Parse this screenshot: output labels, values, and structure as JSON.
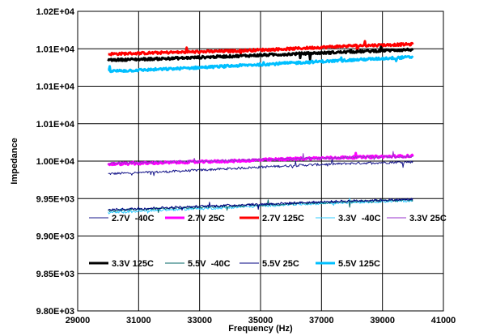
{
  "chart_data": {
    "type": "line",
    "title": "",
    "xlabel": "Frequency (Hz)",
    "ylabel": "Impedance",
    "xlim": [
      29000,
      41000
    ],
    "ylim": [
      9800,
      10200
    ],
    "x_ticks": [
      29000,
      31000,
      33000,
      35000,
      37000,
      39000,
      41000
    ],
    "x_tick_labels": [
      "29000",
      "31000",
      "33000",
      "35000",
      "37000",
      "39000",
      "41000"
    ],
    "y_ticks": [
      9800,
      9850,
      9900,
      9950,
      10000,
      10050,
      10100,
      10150,
      10200
    ],
    "y_tick_labels": [
      "9.80E+03",
      "9.85E+03",
      "9.90E+03",
      "9.95E+03",
      "1.00E+04",
      "1.01E+04",
      "1.01E+04",
      "1.01E+04",
      "1.02E+04"
    ],
    "grid": {
      "vertical": true,
      "horizontal": true
    },
    "legend_position": "bottom-inside",
    "x_range": [
      30000,
      40000
    ],
    "series": [
      {
        "name": "2.7V  -40C",
        "color": "#1a1a8c",
        "width": 1,
        "x": [
          30000,
          32000,
          34000,
          36000,
          38000,
          40000
        ],
        "values": [
          9983,
          9986,
          9990,
          9994,
          9997,
          9999
        ]
      },
      {
        "name": "2.7V 25C",
        "color": "#ff00ff",
        "width": 3,
        "x": [
          30000,
          32000,
          34000,
          36000,
          38000,
          40000
        ],
        "values": [
          9996,
          9998,
          10000,
          10003,
          10005,
          10007
        ]
      },
      {
        "name": "2.7V 125C",
        "color": "#ff0000",
        "width": 3,
        "x": [
          30000,
          32000,
          34000,
          36000,
          38000,
          40000
        ],
        "values": [
          10143,
          10145,
          10147,
          10150,
          10154,
          10156
        ]
      },
      {
        "name": "3.3V  -40C",
        "color": "#33ccff",
        "width": 1,
        "x": [
          30000,
          32000,
          34000,
          36000,
          38000,
          40000
        ],
        "values": [
          9931,
          9935,
          9938,
          9942,
          9945,
          9947
        ]
      },
      {
        "name": "3.3V 25C",
        "color": "#9933cc",
        "width": 1,
        "x": [
          30000,
          32000,
          34000,
          36000,
          38000,
          40000
        ],
        "values": [
          9997,
          9999,
          10001,
          10003,
          10005,
          10006
        ]
      },
      {
        "name": "3.3V 125C",
        "color": "#000000",
        "width": 3,
        "x": [
          30000,
          32000,
          34000,
          36000,
          38000,
          40000
        ],
        "values": [
          10135,
          10137,
          10140,
          10143,
          10146,
          10149
        ]
      },
      {
        "name": "5.5V  -40C",
        "color": "#006666",
        "width": 1,
        "x": [
          30000,
          32000,
          34000,
          36000,
          38000,
          40000
        ],
        "values": [
          9934,
          9937,
          9940,
          9943,
          9946,
          9948
        ]
      },
      {
        "name": "5.5V 25C",
        "color": "#000080",
        "width": 1,
        "x": [
          30000,
          32000,
          34000,
          36000,
          38000,
          40000
        ],
        "values": [
          9935,
          9938,
          9941,
          9944,
          9947,
          9949
        ]
      },
      {
        "name": "5.5V 125C",
        "color": "#00bfff",
        "width": 3,
        "x": [
          30000,
          32000,
          34000,
          36000,
          38000,
          40000
        ],
        "values": [
          10120,
          10123,
          10127,
          10131,
          10135,
          10139
        ]
      }
    ]
  }
}
